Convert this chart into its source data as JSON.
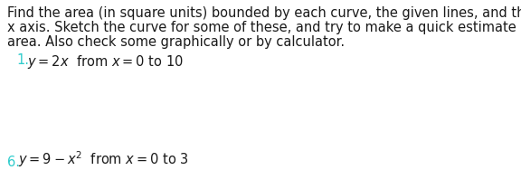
{
  "bg_color": "#ffffff",
  "text_color": "#1a1a1a",
  "number_color": "#2ecccc",
  "paragraph_line1": "Find the area (in square units) bounded by each curve, the given lines, and the",
  "paragraph_line2": "x axis. Sketch the curve for some of these, and try to make a quick estimate of the",
  "paragraph_line3": "area. Also check some graphically or by calculator.",
  "item1_number": "1.",
  "item1_formula": " y = 2x  from x = 0 to 10",
  "item6_number": "6.",
  "item6_formula": " y = 9 − x²  from x = 0 to 3",
  "font_size_para": 10.5,
  "font_size_items": 10.5,
  "fig_width": 5.76,
  "fig_height": 2.09,
  "dpi": 100
}
